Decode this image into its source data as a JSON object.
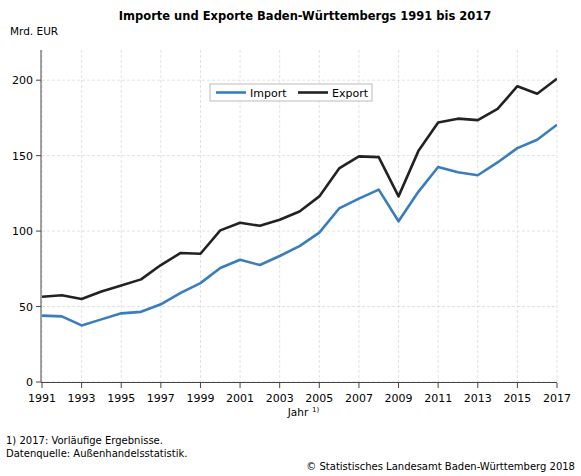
{
  "chart_data": {
    "type": "line",
    "title": "Importe und Exporte Baden-Württembergs 1991 bis 2017",
    "y_label": "Mrd. EUR",
    "x_label": "Jahr",
    "x_label_sup": "1)",
    "footnotes": [
      "1) 2017: Vorläufige Ergebnisse.",
      "Datenquelle: Außenhandelsstatistik."
    ],
    "source": "© Statistisches Landesamt Baden-Württemberg 2018",
    "x": [
      1991,
      1992,
      1993,
      1994,
      1995,
      1996,
      1997,
      1998,
      1999,
      2000,
      2001,
      2002,
      2003,
      2004,
      2005,
      2006,
      2007,
      2008,
      2009,
      2010,
      2011,
      2012,
      2013,
      2014,
      2015,
      2016,
      2017
    ],
    "series": [
      {
        "name": "Import",
        "color": "#3a7dbd",
        "values": [
          44,
          43.5,
          37.5,
          41.5,
          45.5,
          46.5,
          51.5,
          59,
          65.5,
          75.5,
          81,
          77.5,
          83.5,
          90,
          99,
          115,
          121.5,
          127.5,
          106.5,
          126,
          142.5,
          139,
          137,
          145.5,
          155,
          160.5,
          170.5
        ]
      },
      {
        "name": "Export",
        "color": "#222222",
        "values": [
          56.5,
          57.5,
          55,
          60,
          64,
          68,
          77.5,
          85.5,
          85,
          100.5,
          105.5,
          103.5,
          107.5,
          113,
          123,
          141.5,
          149.5,
          149,
          123,
          153,
          172,
          174.5,
          173.5,
          181,
          196,
          191,
          201
        ]
      }
    ],
    "xlim": [
      1991,
      2017
    ],
    "xticks": [
      1991,
      1993,
      1995,
      1997,
      1999,
      2001,
      2003,
      2005,
      2007,
      2009,
      2011,
      2013,
      2015,
      2017
    ],
    "ylim": [
      0,
      220
    ],
    "yticks": [
      0,
      50,
      100,
      150,
      200
    ],
    "grid": true,
    "legend": "top"
  }
}
